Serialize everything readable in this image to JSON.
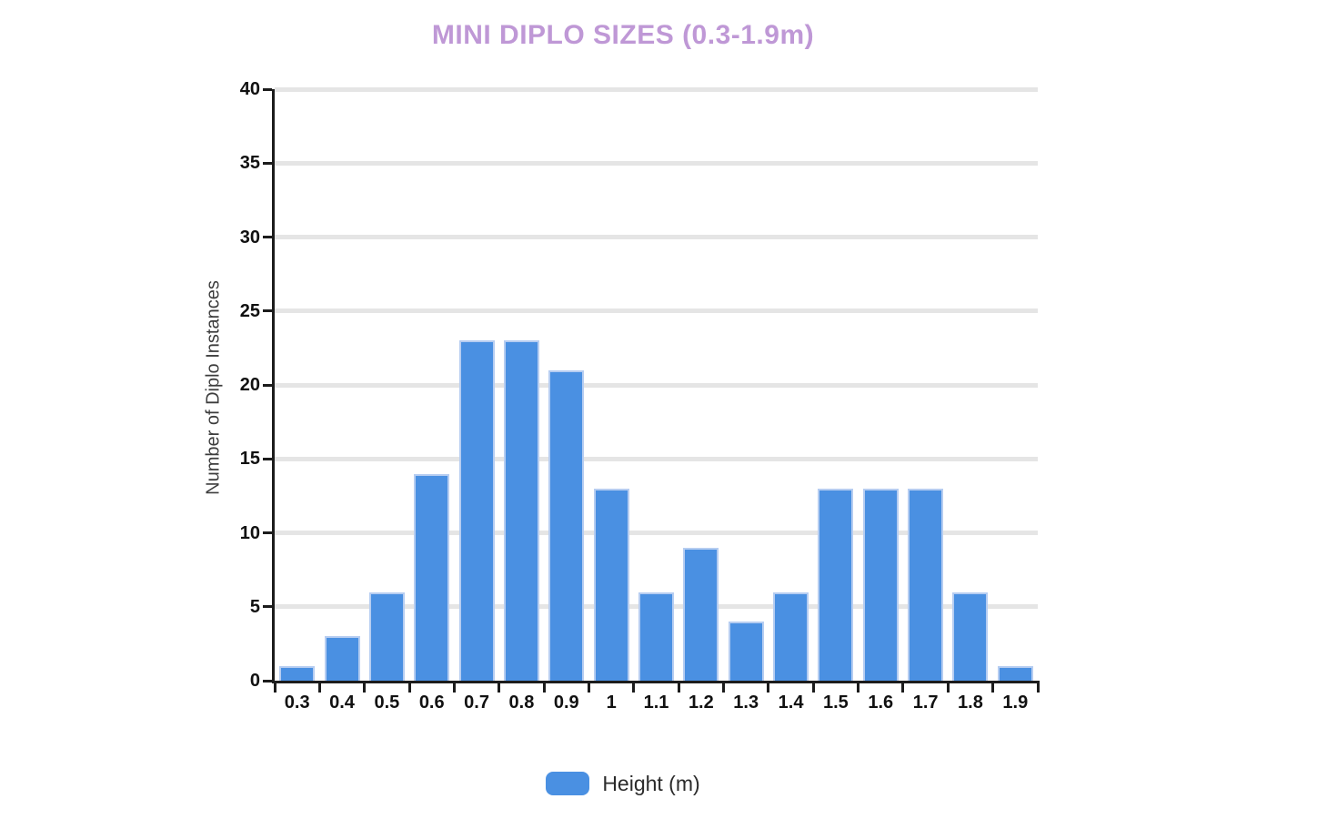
{
  "chart_data": {
    "type": "bar",
    "title": "MINI DIPLO SIZES (0.3-1.9m)",
    "xlabel": "Height (m)",
    "ylabel": "Number of Diplo Instances",
    "categories": [
      "0.3",
      "0.4",
      "0.5",
      "0.6",
      "0.7",
      "0.8",
      "0.9",
      "1",
      "1.1",
      "1.2",
      "1.3",
      "1.4",
      "1.5",
      "1.6",
      "1.7",
      "1.8",
      "1.9"
    ],
    "series": [
      {
        "name": "Height (m)",
        "values": [
          1,
          3,
          6,
          14,
          23,
          23,
          21,
          13,
          6,
          9,
          4,
          6,
          13,
          13,
          13,
          6,
          1
        ]
      }
    ],
    "ylim": [
      0,
      40
    ],
    "yticks": [
      0,
      5,
      10,
      15,
      20,
      25,
      30,
      35,
      40
    ],
    "grid": true,
    "legend_position": "bottom",
    "colors": {
      "bar_fill": "#4a90e2",
      "bar_border": "#b6cdf1",
      "gridline": "#e5e5e5",
      "axis": "#1c1c1c",
      "title": "#bf98d6",
      "tick_label": "#111111",
      "axis_title": "#3d3d3d",
      "legend_text": "#2b2b2b",
      "background": "#ffffff"
    }
  }
}
